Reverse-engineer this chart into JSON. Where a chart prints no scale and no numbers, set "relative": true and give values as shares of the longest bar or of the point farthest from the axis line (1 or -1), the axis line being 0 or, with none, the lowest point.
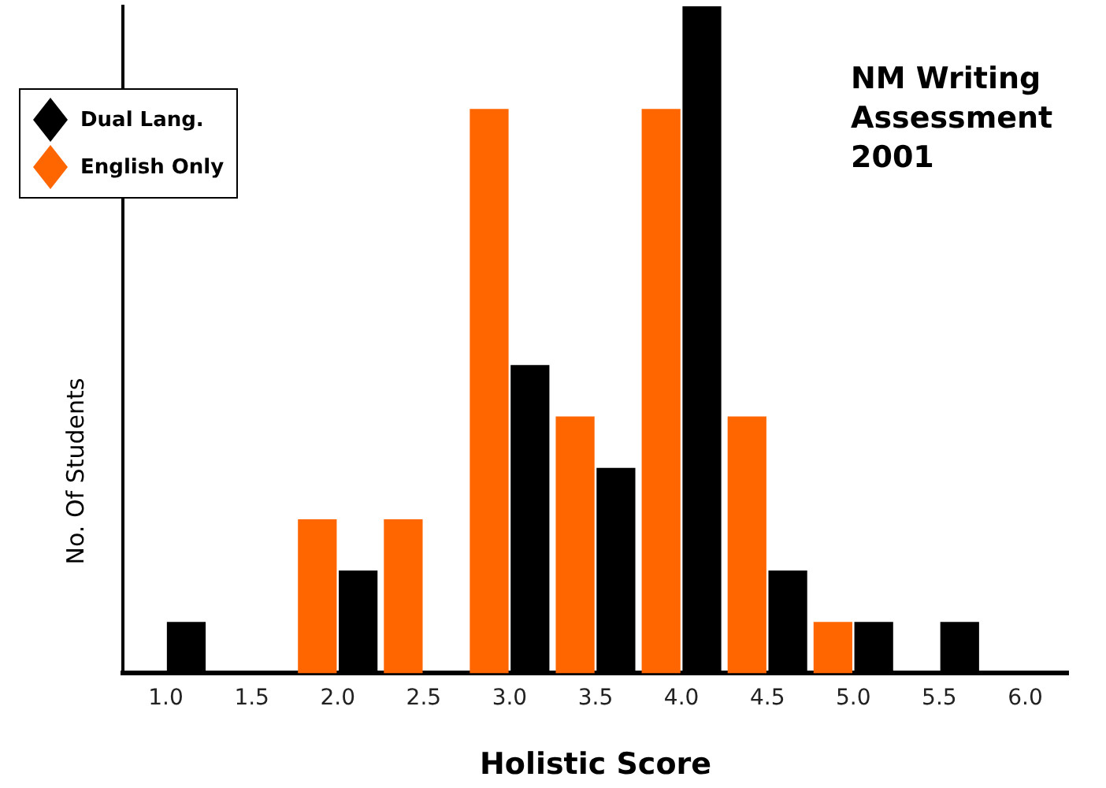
{
  "chart_data": {
    "type": "bar",
    "title": "NM Writing Assessment 2001",
    "xlabel": "Holistic Score",
    "ylabel": "No. Of Students",
    "relative": true,
    "tick_labels": "x",
    "grid": false,
    "legend": "top left",
    "categories": [
      "1.0",
      "1.5",
      "2.0",
      "2.5",
      "3.0",
      "3.5",
      "4.0",
      "4.5",
      "5.0",
      "5.5",
      "6.0"
    ],
    "series": [
      {
        "name": "English Only",
        "color": "#ff6600",
        "values": [
          null,
          null,
          0.231,
          0.231,
          0.846,
          0.385,
          0.846,
          0.385,
          0.077,
          null,
          null
        ]
      },
      {
        "name": "Dual Lang.",
        "color": "#000000",
        "values": [
          0.077,
          null,
          0.154,
          null,
          0.462,
          0.308,
          1,
          0.154,
          0.077,
          0.077,
          null
        ]
      }
    ]
  }
}
